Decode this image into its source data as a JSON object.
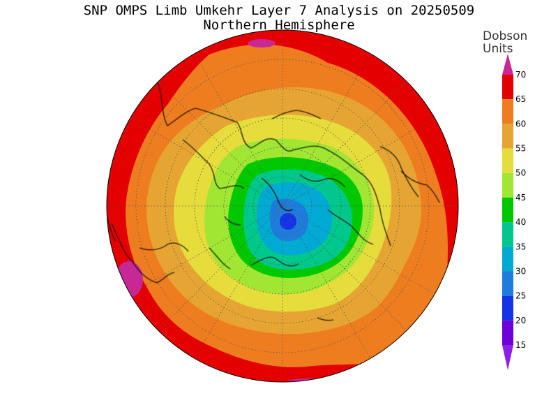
{
  "title": "SNP OMPS Limb Umkehr Layer 7 Analysis on 20250509",
  "subtitle": "Northern Hemisphere",
  "colorbar": {
    "unit_line1": "Dobson",
    "unit_line2": "Units",
    "ticks": [
      "70",
      "65",
      "60",
      "55",
      "50",
      "45",
      "40",
      "35",
      "30",
      "25",
      "20",
      "15"
    ],
    "colors": [
      "#e50000",
      "#ee7d20",
      "#e6a532",
      "#e6dc3c",
      "#a0e632",
      "#00c800",
      "#00c88c",
      "#00aad2",
      "#1e7ddc",
      "#1432e6",
      "#6e00dc"
    ],
    "over_color": "#c82896",
    "under_color": "#8c1ee6"
  },
  "map": {
    "projection": "north-polar-stereographic",
    "grid": "dotted"
  }
}
